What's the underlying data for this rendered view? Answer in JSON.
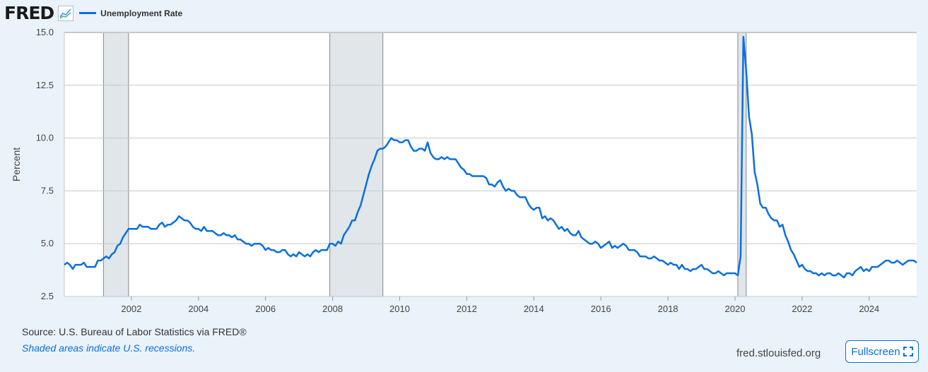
{
  "header": {
    "logo": "FRED",
    "logo_icon": "chart-line-icon"
  },
  "footer": {
    "source": "Source: U.S. Bureau of Labor Statistics via FRED®",
    "note": "Shaded areas indicate U.S. recessions.",
    "url": "fred.stlouisfed.org",
    "fullscreen_label": "Fullscreen",
    "fullscreen_icon": "expand-icon"
  },
  "chart_data": {
    "type": "line",
    "ylabel": "Percent",
    "ylim": [
      2.5,
      15.0
    ],
    "yticks": [
      "2.5",
      "5.0",
      "7.5",
      "10.0",
      "12.5",
      "15.0"
    ],
    "xlim": [
      "2000-01",
      "2025-06"
    ],
    "xticks": [
      "2002",
      "2004",
      "2006",
      "2008",
      "2010",
      "2012",
      "2014",
      "2016",
      "2018",
      "2020",
      "2022",
      "2024"
    ],
    "grid": true,
    "legend_position": "top-left",
    "recessions": [
      [
        "2001-03",
        "2001-11"
      ],
      [
        "2007-12",
        "2009-06"
      ],
      [
        "2020-02",
        "2020-04"
      ]
    ],
    "colors": {
      "line": "#0a6fe0",
      "recession": "#e1e6eb"
    },
    "series": [
      {
        "name": "Unemployment Rate",
        "start": "2000-01",
        "frequency": "monthly",
        "values": [
          4.0,
          4.1,
          4.0,
          3.8,
          4.0,
          4.0,
          4.0,
          4.1,
          3.9,
          3.9,
          3.9,
          3.9,
          4.2,
          4.2,
          4.3,
          4.4,
          4.3,
          4.5,
          4.6,
          4.9,
          5.0,
          5.3,
          5.5,
          5.7,
          5.7,
          5.7,
          5.7,
          5.9,
          5.8,
          5.8,
          5.8,
          5.7,
          5.7,
          5.7,
          5.9,
          6.0,
          5.8,
          5.9,
          5.9,
          6.0,
          6.1,
          6.3,
          6.2,
          6.1,
          6.1,
          6.0,
          5.8,
          5.7,
          5.7,
          5.6,
          5.8,
          5.6,
          5.6,
          5.6,
          5.5,
          5.4,
          5.4,
          5.5,
          5.4,
          5.4,
          5.3,
          5.4,
          5.2,
          5.2,
          5.1,
          5.0,
          5.0,
          4.9,
          5.0,
          5.0,
          5.0,
          4.9,
          4.7,
          4.8,
          4.7,
          4.7,
          4.6,
          4.6,
          4.7,
          4.7,
          4.5,
          4.4,
          4.5,
          4.4,
          4.6,
          4.5,
          4.4,
          4.5,
          4.4,
          4.6,
          4.7,
          4.6,
          4.7,
          4.7,
          4.7,
          5.0,
          5.0,
          4.9,
          5.1,
          5.0,
          5.4,
          5.6,
          5.8,
          6.1,
          6.1,
          6.5,
          6.8,
          7.3,
          7.8,
          8.3,
          8.7,
          9.0,
          9.4,
          9.5,
          9.5,
          9.6,
          9.8,
          10.0,
          9.9,
          9.9,
          9.8,
          9.8,
          9.9,
          9.9,
          9.6,
          9.4,
          9.4,
          9.5,
          9.5,
          9.4,
          9.8,
          9.3,
          9.1,
          9.0,
          9.0,
          9.1,
          9.0,
          9.1,
          9.0,
          9.0,
          9.0,
          8.8,
          8.6,
          8.5,
          8.3,
          8.3,
          8.2,
          8.2,
          8.2,
          8.2,
          8.2,
          8.1,
          7.8,
          7.8,
          7.7,
          7.9,
          8.0,
          7.7,
          7.5,
          7.6,
          7.5,
          7.5,
          7.3,
          7.2,
          7.2,
          7.2,
          6.9,
          6.7,
          6.6,
          6.7,
          6.7,
          6.2,
          6.3,
          6.1,
          6.2,
          6.1,
          5.9,
          5.7,
          5.8,
          5.6,
          5.7,
          5.5,
          5.4,
          5.4,
          5.6,
          5.3,
          5.2,
          5.1,
          5.0,
          5.0,
          5.1,
          5.0,
          4.8,
          4.9,
          5.0,
          5.1,
          4.8,
          4.9,
          4.8,
          4.9,
          5.0,
          4.9,
          4.7,
          4.7,
          4.7,
          4.6,
          4.4,
          4.4,
          4.4,
          4.3,
          4.3,
          4.4,
          4.3,
          4.2,
          4.2,
          4.1,
          4.0,
          4.1,
          4.0,
          4.0,
          3.8,
          4.0,
          3.8,
          3.8,
          3.7,
          3.8,
          3.8,
          3.9,
          4.0,
          3.8,
          3.8,
          3.7,
          3.6,
          3.6,
          3.7,
          3.6,
          3.5,
          3.6,
          3.6,
          3.6,
          3.6,
          3.5,
          4.4,
          14.8,
          13.2,
          11.0,
          10.2,
          8.4,
          7.8,
          6.9,
          6.7,
          6.7,
          6.4,
          6.2,
          6.1,
          6.1,
          5.8,
          5.9,
          5.4,
          5.1,
          4.7,
          4.5,
          4.2,
          3.9,
          4.0,
          3.8,
          3.7,
          3.7,
          3.6,
          3.6,
          3.5,
          3.6,
          3.5,
          3.6,
          3.6,
          3.5,
          3.5,
          3.6,
          3.5,
          3.4,
          3.6,
          3.6,
          3.5,
          3.7,
          3.8,
          3.9,
          3.7,
          3.8,
          3.7,
          3.9,
          3.9,
          3.9,
          4.0,
          4.1,
          4.2,
          4.2,
          4.1,
          4.1,
          4.2,
          4.1,
          4.0,
          4.1,
          4.2,
          4.2,
          4.2,
          4.1
        ]
      }
    ]
  }
}
